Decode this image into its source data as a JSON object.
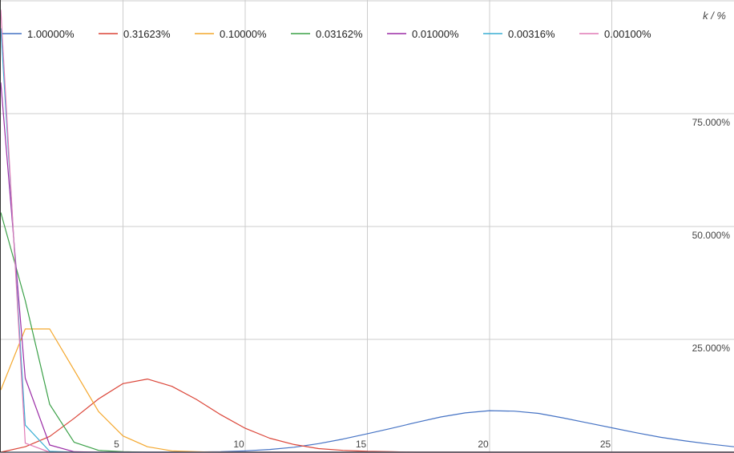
{
  "chart_data": {
    "type": "line",
    "title": "",
    "xlabel": "",
    "ylabel": "k / %",
    "xlim": [
      0,
      30
    ],
    "ylim": [
      0,
      100
    ],
    "x_ticks": [
      5,
      10,
      15,
      20,
      25
    ],
    "x_tick_labels": [
      "5",
      "10",
      "15",
      "20",
      "25"
    ],
    "y_ticks": [
      25,
      50,
      75
    ],
    "y_tick_labels": [
      "25.000%",
      "50.000%",
      "75.000%"
    ],
    "grid": true,
    "legend_position": "top",
    "x": [
      0,
      1,
      2,
      3,
      4,
      5,
      6,
      7,
      8,
      9,
      10,
      11,
      12,
      13,
      14,
      15,
      16,
      17,
      18,
      19,
      20,
      21,
      22,
      23,
      24,
      25,
      26,
      27,
      28,
      29,
      30
    ],
    "series": [
      {
        "name": "1.00000%",
        "color": "#4472c4",
        "values": [
          0,
          0,
          0,
          0,
          0,
          0,
          0,
          0,
          0.05,
          0.1,
          0.3,
          0.6,
          1.1,
          1.9,
          2.9,
          4.1,
          5.3,
          6.6,
          7.8,
          8.7,
          9.2,
          9.1,
          8.6,
          7.6,
          6.5,
          5.4,
          4.3,
          3.3,
          2.5,
          1.8,
          1.2
        ]
      },
      {
        "name": "0.31623%",
        "color": "#db4437",
        "values": [
          0,
          1.2,
          3.5,
          7.5,
          11.8,
          15.2,
          16.2,
          14.6,
          11.7,
          8.3,
          5.3,
          3.1,
          1.7,
          0.8,
          0.4,
          0.2,
          0.1,
          0,
          0,
          0,
          0,
          0,
          0,
          0,
          0,
          0,
          0,
          0,
          0,
          0,
          0
        ]
      },
      {
        "name": "0.10000%",
        "color": "#f4a72c",
        "values": [
          13.8,
          27.3,
          27.3,
          18.2,
          9.0,
          3.6,
          1.2,
          0.3,
          0.1,
          0,
          0,
          0,
          0,
          0,
          0,
          0,
          0,
          0,
          0,
          0,
          0,
          0,
          0,
          0,
          0,
          0,
          0,
          0,
          0,
          0,
          0
        ]
      },
      {
        "name": "0.03162%",
        "color": "#3aa047",
        "values": [
          53.1,
          33.6,
          10.6,
          2.2,
          0.4,
          0.1,
          0,
          0,
          0,
          0,
          0,
          0,
          0,
          0,
          0,
          0,
          0,
          0,
          0,
          0,
          0,
          0,
          0,
          0,
          0,
          0,
          0,
          0,
          0,
          0,
          0
        ]
      },
      {
        "name": "0.01000%",
        "color": "#9b2ca6",
        "values": [
          81.9,
          16.4,
          1.6,
          0.1,
          0,
          0,
          0,
          0,
          0,
          0,
          0,
          0,
          0,
          0,
          0,
          0,
          0,
          0,
          0,
          0,
          0,
          0,
          0,
          0,
          0,
          0,
          0,
          0,
          0,
          0,
          0
        ]
      },
      {
        "name": "0.00316%",
        "color": "#38aed4",
        "values": [
          93.9,
          6.0,
          0.2,
          0,
          0,
          0,
          0,
          0,
          0,
          0,
          0,
          0,
          0,
          0,
          0,
          0,
          0,
          0,
          0,
          0,
          0,
          0,
          0,
          0,
          0,
          0,
          0,
          0,
          0,
          0,
          0
        ]
      },
      {
        "name": "0.00100%",
        "color": "#e07ab6",
        "values": [
          98.0,
          2.0,
          0,
          0,
          0,
          0,
          0,
          0,
          0,
          0,
          0,
          0,
          0,
          0,
          0,
          0,
          0,
          0,
          0,
          0,
          0,
          0,
          0,
          0,
          0,
          0,
          0,
          0,
          0,
          0,
          0
        ]
      }
    ]
  }
}
